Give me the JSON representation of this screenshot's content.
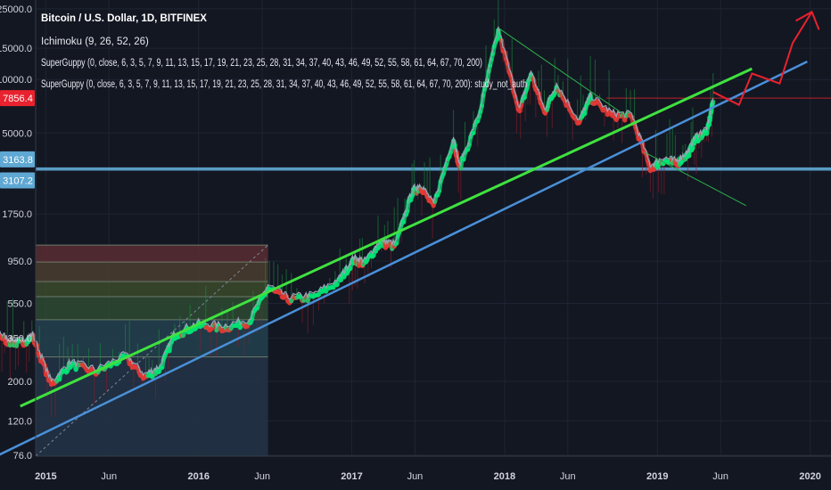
{
  "legend": {
    "title": "Bitcoin / U.S. Dollar, 1D, BITFINEX",
    "ichimoku": "Ichimoku (9, 26, 52, 26)",
    "guppy1": "SuperGuppy (0, close, 6, 3, 5, 7, 9, 11, 13, 15, 17, 19, 21, 23, 25, 28, 31, 34, 37, 40, 43, 46, 49, 52, 55, 58, 61, 64, 67, 70, 200)",
    "guppy2": "SuperGuppy (0, close, 6, 3, 5, 7, 9, 11, 13, 15, 17, 19, 21, 23, 25, 28, 31, 34, 37, 40, 43, 46, 49, 52, 55, 58, 61, 64, 67, 70, 200): study_not_auth"
  },
  "colors": {
    "background": "#131722",
    "price": "#9aa3b5",
    "guppy_up": "#00e676",
    "guppy_down": "#e53935",
    "channel_green": "#3fe23f",
    "channel_blue": "#4a90d9",
    "projection": "#e8222e",
    "support": "#5fa8d3",
    "resistance_line": "#e8222e"
  },
  "chart_data": {
    "type": "line",
    "title": "Bitcoin / U.S. Dollar, 1D, BITFINEX",
    "yscale": "log",
    "ylim": [
      76,
      25000
    ],
    "y_ticks": [
      "25000.0",
      "15000.0",
      "10000.0",
      "5000.0",
      "1750.0",
      "950.0",
      "550.0",
      "350.0",
      "200.0",
      "120.0",
      "76.0"
    ],
    "x_ticks": [
      "Jun",
      "2015",
      "Jun",
      "2016",
      "Jun",
      "2017",
      "Jun",
      "2018",
      "Jun",
      "2019",
      "Jun",
      "2020",
      "Jun"
    ],
    "price_tags": [
      {
        "label": "7856.4",
        "value": 7856.4,
        "color": "#e8222e"
      },
      {
        "label": "3163.8",
        "value": 3163.8,
        "color": "#5fa8d3"
      },
      {
        "label": "3107.2",
        "value": 3107.2,
        "color": "#5fa8d3"
      }
    ],
    "series": [
      {
        "name": "BTCUSD",
        "x": [
          "2014-04-15",
          "2014-05-20",
          "2014-06-10",
          "2014-07-01",
          "2014-08-01",
          "2014-09-01",
          "2014-10-01",
          "2014-11-01",
          "2014-12-01",
          "2015-01-14",
          "2015-03-01",
          "2015-05-01",
          "2015-07-10",
          "2015-08-25",
          "2015-10-01",
          "2015-11-05",
          "2016-01-01",
          "2016-03-01",
          "2016-05-01",
          "2016-06-15",
          "2016-08-01",
          "2016-10-01",
          "2016-12-01",
          "2017-01-05",
          "2017-02-01",
          "2017-03-10",
          "2017-04-15",
          "2017-05-25",
          "2017-06-15",
          "2017-07-15",
          "2017-09-01",
          "2017-09-15",
          "2017-11-01",
          "2017-12-17",
          "2018-02-06",
          "2018-03-05",
          "2018-04-06",
          "2018-05-05",
          "2018-06-28",
          "2018-07-25",
          "2018-09-15",
          "2018-11-01",
          "2018-12-15",
          "2019-01-15",
          "2019-02-15",
          "2019-03-15",
          "2019-04-02",
          "2019-05-01",
          "2019-05-14"
        ],
        "values": [
          520,
          450,
          640,
          600,
          520,
          400,
          350,
          340,
          370,
          200,
          260,
          235,
          285,
          220,
          245,
          380,
          430,
          415,
          450,
          700,
          600,
          620,
          760,
          1000,
          960,
          1250,
          1200,
          2400,
          2600,
          2000,
          4800,
          3300,
          6500,
          19500,
          6900,
          11200,
          6800,
          9500,
          5900,
          8200,
          6500,
          6400,
          3300,
          3650,
          3500,
          3950,
          4800,
          5400,
          7856
        ]
      },
      {
        "name": "channel_green",
        "x": [
          "2014-11-01",
          "2019-08-15"
        ],
        "values": [
          145,
          11500
        ]
      },
      {
        "name": "channel_blue",
        "x": [
          "2014-06-20",
          "2019-12-25"
        ],
        "values": [
          62,
          12600
        ]
      },
      {
        "name": "projection",
        "x": [
          "2019-05-14",
          "2019-07-15",
          "2019-08-15",
          "2019-10-20",
          "2019-11-20",
          "2020-01-05"
        ],
        "values": [
          8500,
          7200,
          10800,
          9500,
          16000,
          24000
        ]
      },
      {
        "name": "downtrend_line",
        "x": [
          "2017-12-17",
          "2018-10-20"
        ],
        "values": [
          19500,
          6200
        ]
      }
    ],
    "levels": [
      {
        "label": "7856.4",
        "value": 7856.4
      },
      {
        "label": "3163.8",
        "value": 3163.8
      },
      {
        "label": "3107.2",
        "value": 3107.2
      }
    ],
    "fib_box": {
      "x_start": "2014-04-01",
      "x_end": "2016-06-15",
      "levels": [
        1170,
        940,
        730,
        600,
        445,
        275,
        76
      ],
      "fills": [
        "#5b2d33",
        "#4a3d2e",
        "#3c4a2c",
        "#2e4a33",
        "#23414f",
        "#233447",
        "#2c2f38"
      ]
    },
    "grid": true,
    "legend_position": "top-left"
  }
}
